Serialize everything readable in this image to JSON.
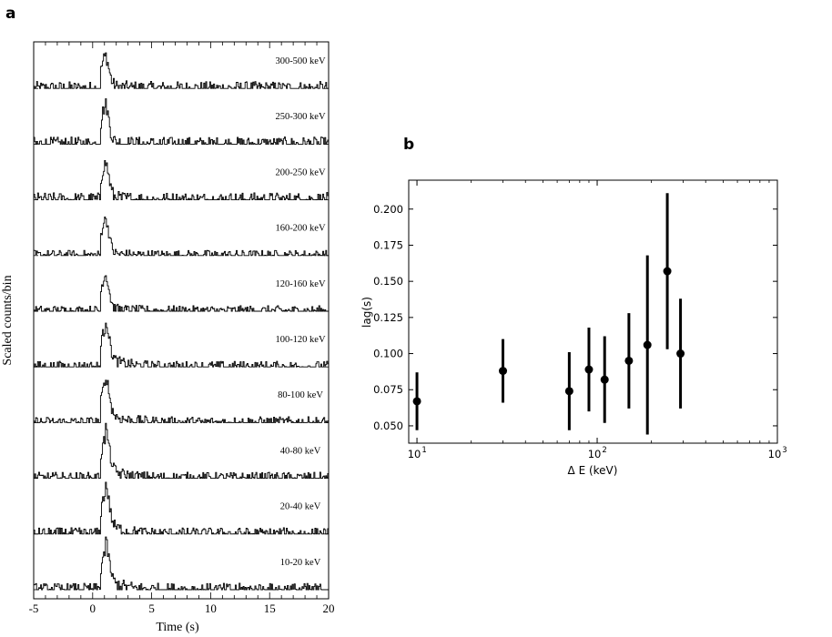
{
  "chart_data": [
    {
      "panel": "a",
      "type": "line",
      "xlabel": "Time (s)",
      "ylabel": "Scaled counts/bin",
      "xlim": [
        -5,
        20
      ],
      "xticks": [
        "-5",
        "0",
        "5",
        "10",
        "15",
        "20"
      ],
      "peak_time": 1.0,
      "series": [
        {
          "name": "300-500 keV",
          "peak": 0.75
        },
        {
          "name": "250-300 keV",
          "peak": 0.9
        },
        {
          "name": "200-250 keV",
          "peak": 0.85
        },
        {
          "name": "160-200 keV",
          "peak": 0.85
        },
        {
          "name": "120-160 keV",
          "peak": 0.85
        },
        {
          "name": "100-120 keV",
          "peak": 0.9
        },
        {
          "name": "80-100 keV",
          "peak": 0.9
        },
        {
          "name": "40-80 keV",
          "peak": 0.95
        },
        {
          "name": "20-40 keV",
          "peak": 0.95
        },
        {
          "name": "10-20 keV",
          "peak": 0.9
        }
      ]
    },
    {
      "panel": "b",
      "type": "scatter",
      "xlabel": "Δ E (keV)",
      "ylabel": "lag(s)",
      "xscale": "log",
      "xlim": [
        9,
        1000
      ],
      "ylim": [
        0.038,
        0.22
      ],
      "xticks": [
        {
          "value": 10,
          "base": "10",
          "exp": "1"
        },
        {
          "value": 100,
          "base": "10",
          "exp": "2"
        },
        {
          "value": 1000,
          "base": "10",
          "exp": "3"
        }
      ],
      "yticks": [
        "0.050",
        "0.075",
        "0.100",
        "0.125",
        "0.150",
        "0.175",
        "0.200"
      ],
      "points": [
        {
          "x": 10,
          "y": 0.067,
          "err": 0.02
        },
        {
          "x": 30,
          "y": 0.088,
          "err": 0.022
        },
        {
          "x": 70,
          "y": 0.074,
          "err": 0.027
        },
        {
          "x": 90,
          "y": 0.089,
          "err": 0.029
        },
        {
          "x": 110,
          "y": 0.082,
          "err": 0.03
        },
        {
          "x": 150,
          "y": 0.095,
          "err": 0.033
        },
        {
          "x": 190,
          "y": 0.106,
          "err": 0.062
        },
        {
          "x": 245,
          "y": 0.157,
          "err": 0.054
        },
        {
          "x": 290,
          "y": 0.1,
          "err": 0.038
        }
      ]
    }
  ],
  "labels": {
    "panel_a": "a",
    "panel_b": "b"
  }
}
